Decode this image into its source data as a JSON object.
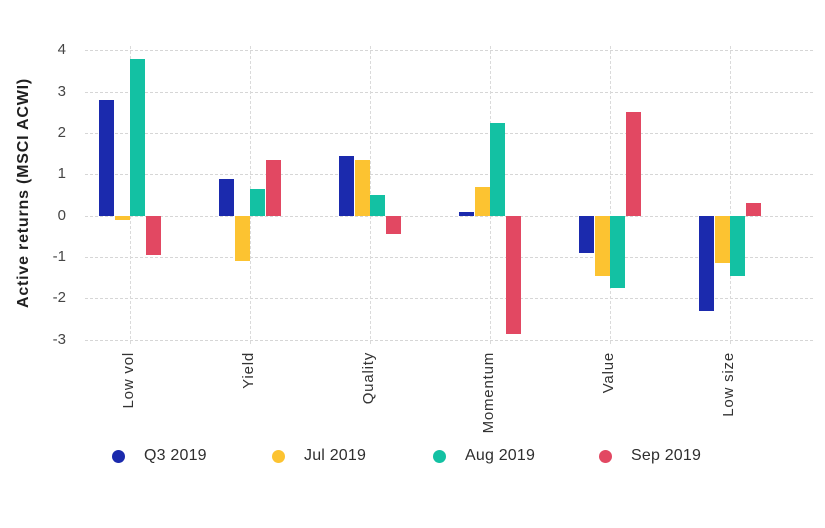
{
  "chart_data": {
    "type": "bar",
    "ylabel": "Active returns (MSCI ACWI)",
    "categories": [
      "Low vol",
      "Yield",
      "Quality",
      "Momentum",
      "Value",
      "Low size"
    ],
    "series": [
      {
        "name": "Q3 2019",
        "color": "#1b2aad",
        "values": [
          2.8,
          0.9,
          1.45,
          0.1,
          -0.9,
          -2.3
        ]
      },
      {
        "name": "Jul 2019",
        "color": "#fcc331",
        "values": [
          -0.1,
          -1.1,
          1.35,
          0.7,
          -1.45,
          -1.15
        ]
      },
      {
        "name": "Aug 2019",
        "color": "#13c1a3",
        "values": [
          3.8,
          0.65,
          0.5,
          2.25,
          -1.75,
          -1.45
        ]
      },
      {
        "name": "Sep 2019",
        "color": "#e24862",
        "values": [
          -0.95,
          1.35,
          -0.45,
          -2.85,
          2.5,
          0.3
        ]
      }
    ],
    "yticks": [
      4,
      3,
      2,
      1,
      0,
      -1,
      -2,
      -3
    ],
    "ylim": [
      -3.2,
      4.3
    ],
    "grid": "dashed horizontal lines at integer ticks and dashed vertical lines at category centers",
    "legend_position": "bottom",
    "grid_color": "#d6d6d6",
    "background_color": "#ffffff"
  }
}
